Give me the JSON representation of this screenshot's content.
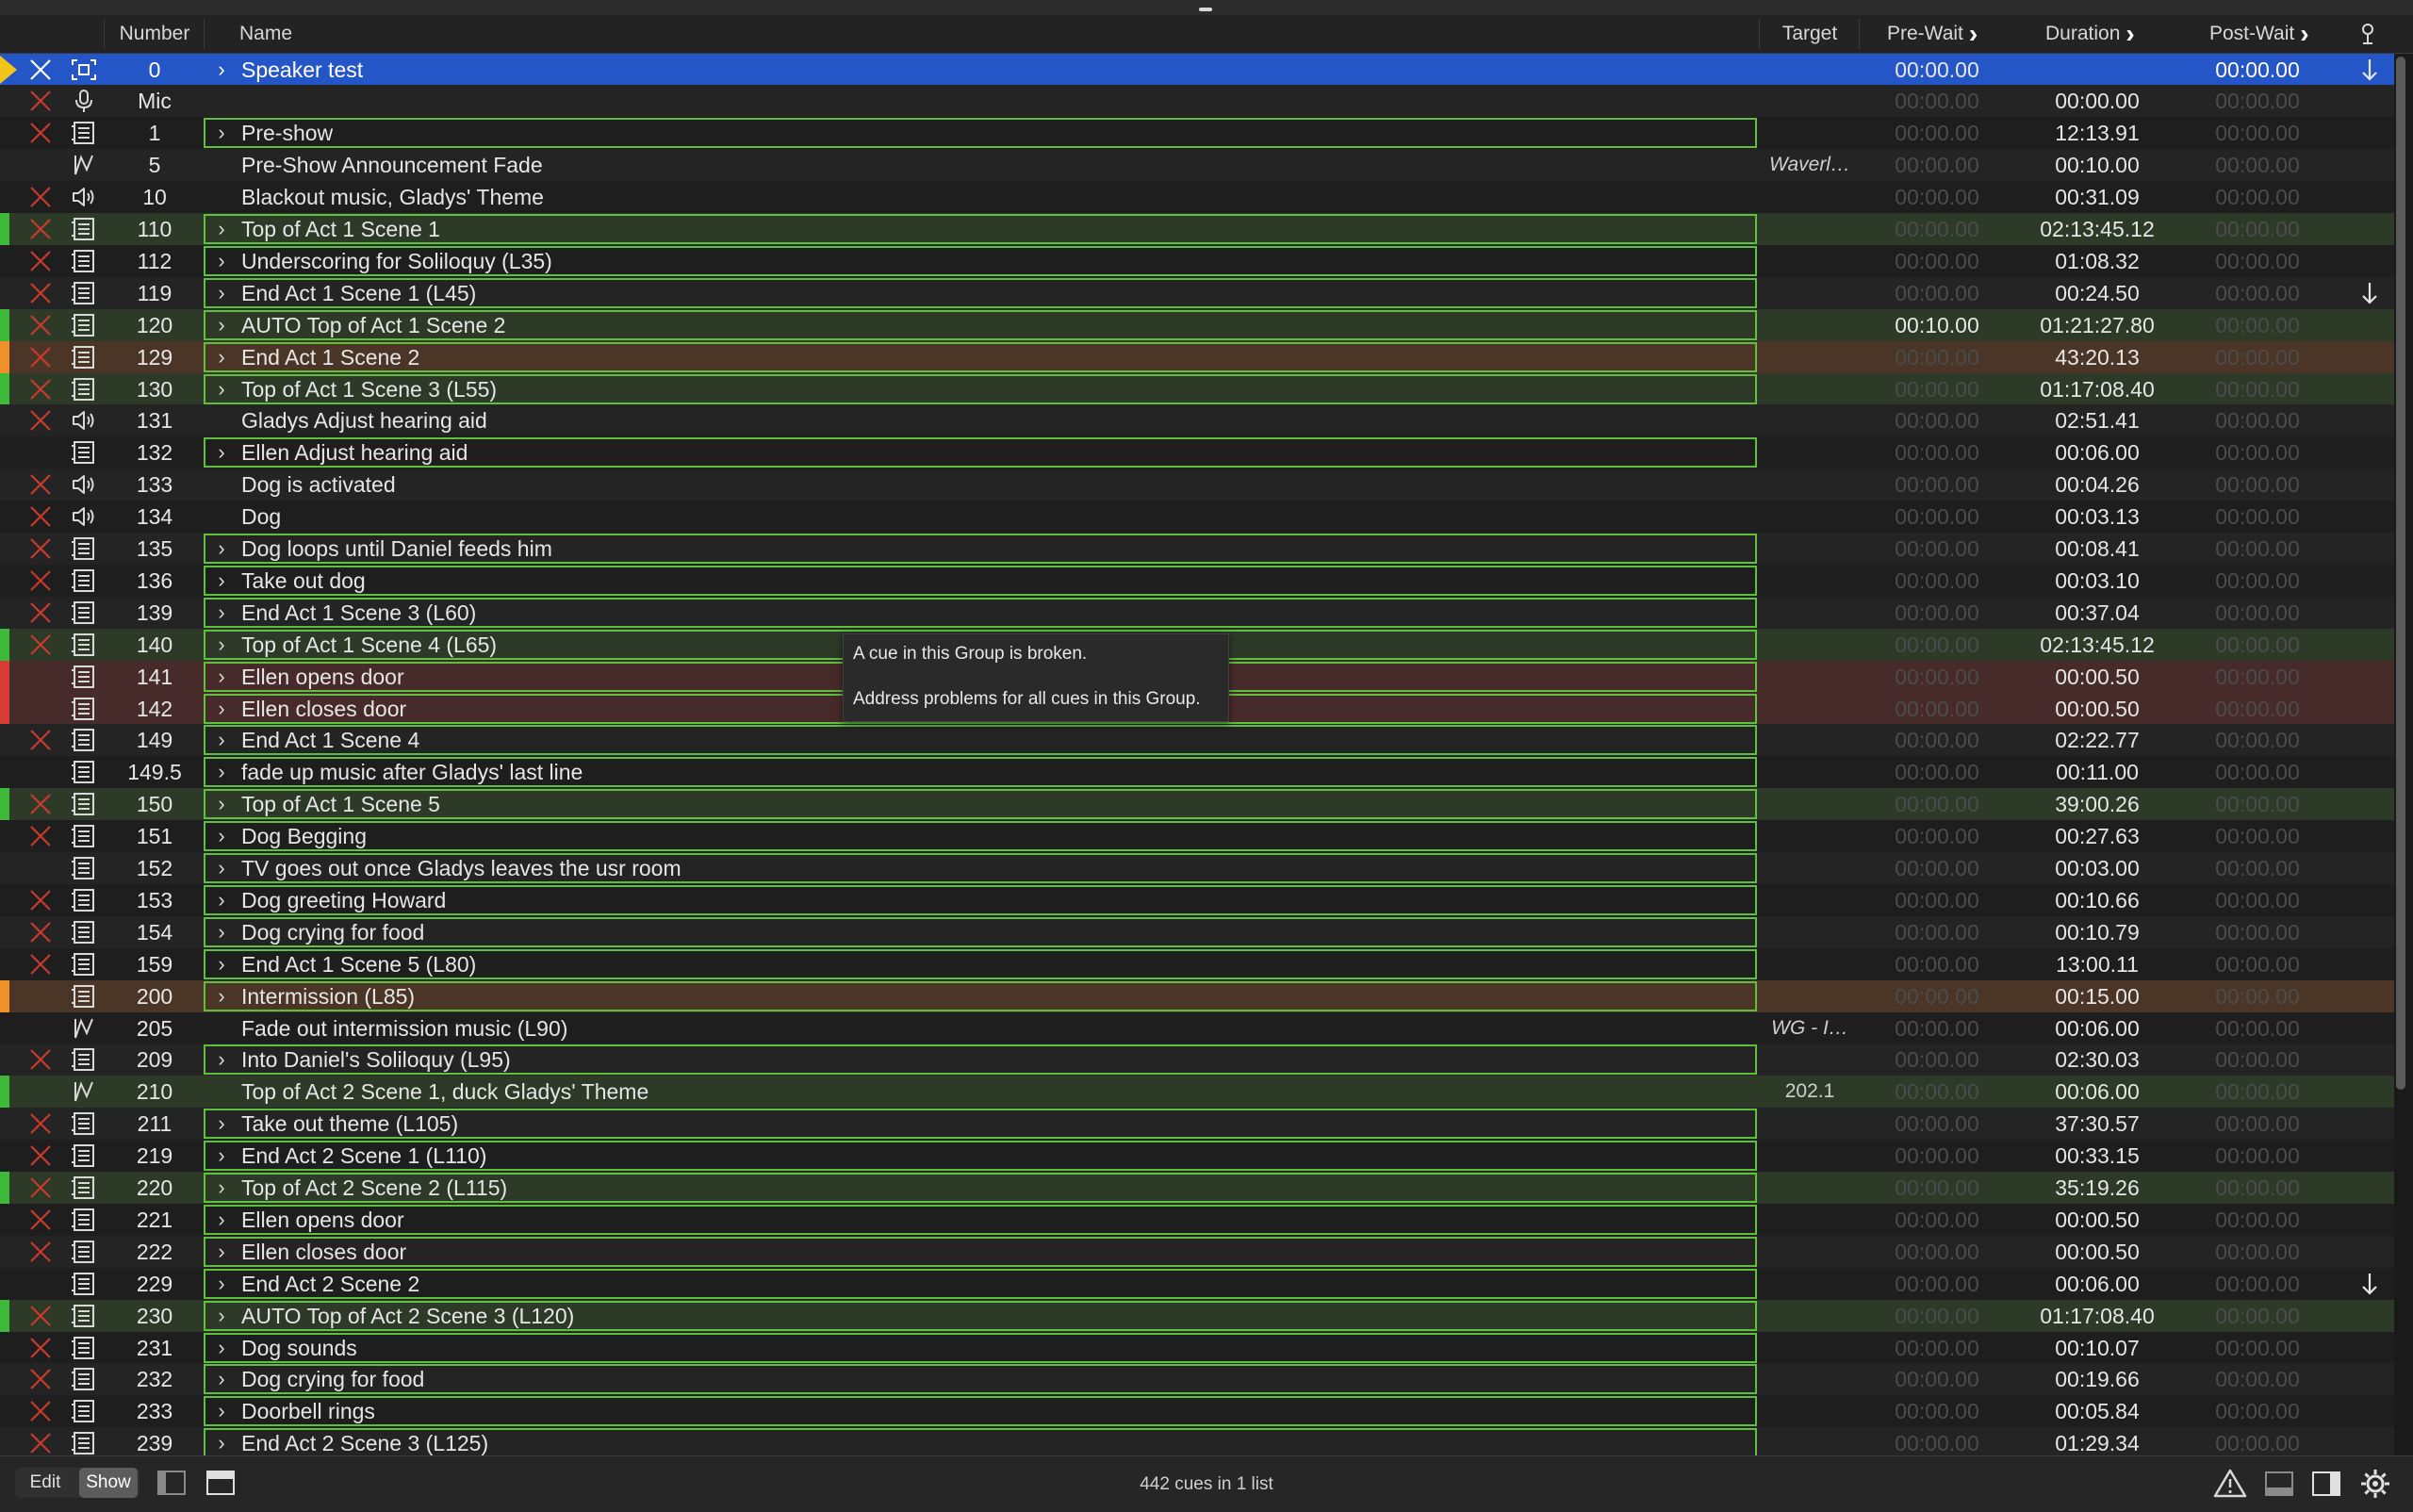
{
  "columns": {
    "number": "Number",
    "name": "Name",
    "target": "Target",
    "prewait": "Pre-Wait",
    "duration": "Duration",
    "postwait": "Post-Wait"
  },
  "cues": [
    {
      "number": "0",
      "name": "Speaker test",
      "type": "focus",
      "group": true,
      "broken": true,
      "stripe": "yellow",
      "prewait": "00:00.00",
      "duration": "",
      "postwait": "00:00.00",
      "target": "",
      "selected": true,
      "arrow": true,
      "pre_active": true
    },
    {
      "number": "Mic",
      "name": "",
      "type": "mic",
      "group": false,
      "broken": true,
      "stripe": "",
      "prewait": "00:00.00",
      "duration": "00:00.00",
      "postwait": "00:00.00",
      "target": ""
    },
    {
      "number": "1",
      "name": "Pre-show",
      "type": "group",
      "group": true,
      "broken": true,
      "stripe": "",
      "prewait": "00:00.00",
      "duration": "12:13.91",
      "postwait": "00:00.00",
      "target": ""
    },
    {
      "number": "5",
      "name": "Pre-Show Announcement Fade",
      "type": "fade",
      "group": false,
      "broken": false,
      "stripe": "",
      "prewait": "00:00.00",
      "duration": "00:10.00",
      "postwait": "00:00.00",
      "target": "Waverl…"
    },
    {
      "number": "10",
      "name": "Blackout music, Gladys' Theme",
      "type": "audio",
      "group": false,
      "broken": true,
      "stripe": "",
      "prewait": "00:00.00",
      "duration": "00:31.09",
      "postwait": "00:00.00",
      "target": ""
    },
    {
      "number": "110",
      "name": "Top of Act 1 Scene 1",
      "type": "group",
      "group": true,
      "broken": true,
      "stripe": "green",
      "prewait": "00:00.00",
      "duration": "02:13:45.12",
      "postwait": "00:00.00",
      "target": ""
    },
    {
      "number": "112",
      "name": "Underscoring for Soliloquy (L35)",
      "type": "group",
      "group": true,
      "broken": true,
      "stripe": "",
      "prewait": "00:00.00",
      "duration": "01:08.32",
      "postwait": "00:00.00",
      "target": ""
    },
    {
      "number": "119",
      "name": "End Act 1 Scene 1 (L45)",
      "type": "group",
      "group": true,
      "broken": true,
      "stripe": "",
      "prewait": "00:00.00",
      "duration": "00:24.50",
      "postwait": "00:00.00",
      "target": "",
      "arrow": true
    },
    {
      "number": "120",
      "name": "AUTO Top of Act 1 Scene 2",
      "type": "group",
      "group": true,
      "broken": true,
      "stripe": "green",
      "prewait": "00:10.00",
      "duration": "01:21:27.80",
      "postwait": "00:00.00",
      "target": "",
      "pre_active": true
    },
    {
      "number": "129",
      "name": "End Act 1 Scene 2",
      "type": "group",
      "group": true,
      "broken": true,
      "stripe": "orange",
      "prewait": "00:00.00",
      "duration": "43:20.13",
      "postwait": "00:00.00",
      "target": ""
    },
    {
      "number": "130",
      "name": "Top of Act 1 Scene 3 (L55)",
      "type": "group",
      "group": true,
      "broken": true,
      "stripe": "green",
      "prewait": "00:00.00",
      "duration": "01:17:08.40",
      "postwait": "00:00.00",
      "target": ""
    },
    {
      "number": "131",
      "name": "Gladys Adjust hearing aid",
      "type": "audio",
      "group": false,
      "broken": true,
      "stripe": "",
      "prewait": "00:00.00",
      "duration": "02:51.41",
      "postwait": "00:00.00",
      "target": ""
    },
    {
      "number": "132",
      "name": "Ellen Adjust hearing aid",
      "type": "group",
      "group": true,
      "broken": false,
      "stripe": "",
      "prewait": "00:00.00",
      "duration": "00:06.00",
      "postwait": "00:00.00",
      "target": ""
    },
    {
      "number": "133",
      "name": "Dog is activated",
      "type": "audio",
      "group": false,
      "broken": true,
      "stripe": "",
      "prewait": "00:00.00",
      "duration": "00:04.26",
      "postwait": "00:00.00",
      "target": ""
    },
    {
      "number": "134",
      "name": "Dog",
      "type": "audio",
      "group": false,
      "broken": true,
      "stripe": "",
      "prewait": "00:00.00",
      "duration": "00:03.13",
      "postwait": "00:00.00",
      "target": ""
    },
    {
      "number": "135",
      "name": "Dog loops until Daniel feeds him",
      "type": "group",
      "group": true,
      "broken": true,
      "stripe": "",
      "prewait": "00:00.00",
      "duration": "00:08.41",
      "postwait": "00:00.00",
      "target": ""
    },
    {
      "number": "136",
      "name": "Take out dog",
      "type": "group",
      "group": true,
      "broken": true,
      "stripe": "",
      "prewait": "00:00.00",
      "duration": "00:03.10",
      "postwait": "00:00.00",
      "target": ""
    },
    {
      "number": "139",
      "name": "End Act 1 Scene 3 (L60)",
      "type": "group",
      "group": true,
      "broken": true,
      "stripe": "",
      "prewait": "00:00.00",
      "duration": "00:37.04",
      "postwait": "00:00.00",
      "target": ""
    },
    {
      "number": "140",
      "name": "Top of Act 1 Scene 4 (L65)",
      "type": "group",
      "group": true,
      "broken": true,
      "stripe": "green",
      "prewait": "00:00.00",
      "duration": "02:13:45.12",
      "postwait": "00:00.00",
      "target": ""
    },
    {
      "number": "141",
      "name": "Ellen opens door",
      "type": "group",
      "group": true,
      "broken": false,
      "stripe": "red",
      "prewait": "00:00.00",
      "duration": "00:00.50",
      "postwait": "00:00.00",
      "target": ""
    },
    {
      "number": "142",
      "name": "Ellen closes door",
      "type": "group",
      "group": true,
      "broken": false,
      "stripe": "red",
      "prewait": "00:00.00",
      "duration": "00:00.50",
      "postwait": "00:00.00",
      "target": ""
    },
    {
      "number": "149",
      "name": "End Act 1 Scene 4",
      "type": "group",
      "group": true,
      "broken": true,
      "stripe": "",
      "prewait": "00:00.00",
      "duration": "02:22.77",
      "postwait": "00:00.00",
      "target": ""
    },
    {
      "number": "149.5",
      "name": "fade up music after Gladys' last line",
      "type": "group",
      "group": true,
      "broken": false,
      "stripe": "",
      "prewait": "00:00.00",
      "duration": "00:11.00",
      "postwait": "00:00.00",
      "target": ""
    },
    {
      "number": "150",
      "name": "Top of Act 1 Scene 5",
      "type": "group",
      "group": true,
      "broken": true,
      "stripe": "green",
      "prewait": "00:00.00",
      "duration": "39:00.26",
      "postwait": "00:00.00",
      "target": ""
    },
    {
      "number": "151",
      "name": "Dog Begging",
      "type": "group",
      "group": true,
      "broken": true,
      "stripe": "",
      "prewait": "00:00.00",
      "duration": "00:27.63",
      "postwait": "00:00.00",
      "target": ""
    },
    {
      "number": "152",
      "name": "TV goes out once Gladys leaves the usr room",
      "type": "group",
      "group": true,
      "broken": false,
      "stripe": "",
      "prewait": "00:00.00",
      "duration": "00:03.00",
      "postwait": "00:00.00",
      "target": ""
    },
    {
      "number": "153",
      "name": "Dog greeting Howard",
      "type": "group",
      "group": true,
      "broken": true,
      "stripe": "",
      "prewait": "00:00.00",
      "duration": "00:10.66",
      "postwait": "00:00.00",
      "target": ""
    },
    {
      "number": "154",
      "name": "Dog crying for food",
      "type": "group",
      "group": true,
      "broken": true,
      "stripe": "",
      "prewait": "00:00.00",
      "duration": "00:10.79",
      "postwait": "00:00.00",
      "target": ""
    },
    {
      "number": "159",
      "name": "End Act 1 Scene 5 (L80)",
      "type": "group",
      "group": true,
      "broken": true,
      "stripe": "",
      "prewait": "00:00.00",
      "duration": "13:00.11",
      "postwait": "00:00.00",
      "target": ""
    },
    {
      "number": "200",
      "name": "Intermission (L85)",
      "type": "group",
      "group": true,
      "broken": false,
      "stripe": "orange",
      "prewait": "00:00.00",
      "duration": "00:15.00",
      "postwait": "00:00.00",
      "target": ""
    },
    {
      "number": "205",
      "name": "Fade out intermission music (L90)",
      "type": "fade",
      "group": false,
      "broken": false,
      "stripe": "",
      "prewait": "00:00.00",
      "duration": "00:06.00",
      "postwait": "00:00.00",
      "target": "WG - I…"
    },
    {
      "number": "209",
      "name": "Into Daniel's Soliloquy (L95)",
      "type": "group",
      "group": true,
      "broken": true,
      "stripe": "",
      "prewait": "00:00.00",
      "duration": "02:30.03",
      "postwait": "00:00.00",
      "target": ""
    },
    {
      "number": "210",
      "name": "Top of Act 2 Scene 1, duck Gladys' Theme",
      "type": "fade",
      "group": false,
      "broken": false,
      "stripe": "green",
      "prewait": "00:00.00",
      "duration": "00:06.00",
      "postwait": "00:00.00",
      "target": "202.1",
      "target_plain": true
    },
    {
      "number": "211",
      "name": "Take out theme (L105)",
      "type": "group",
      "group": true,
      "broken": true,
      "stripe": "",
      "prewait": "00:00.00",
      "duration": "37:30.57",
      "postwait": "00:00.00",
      "target": ""
    },
    {
      "number": "219",
      "name": "End Act 2 Scene 1 (L110)",
      "type": "group",
      "group": true,
      "broken": true,
      "stripe": "",
      "prewait": "00:00.00",
      "duration": "00:33.15",
      "postwait": "00:00.00",
      "target": ""
    },
    {
      "number": "220",
      "name": "Top of Act 2 Scene 2 (L115)",
      "type": "group",
      "group": true,
      "broken": true,
      "stripe": "green",
      "prewait": "00:00.00",
      "duration": "35:19.26",
      "postwait": "00:00.00",
      "target": ""
    },
    {
      "number": "221",
      "name": "Ellen opens door",
      "type": "group",
      "group": true,
      "broken": true,
      "stripe": "",
      "prewait": "00:00.00",
      "duration": "00:00.50",
      "postwait": "00:00.00",
      "target": ""
    },
    {
      "number": "222",
      "name": "Ellen closes door",
      "type": "group",
      "group": true,
      "broken": true,
      "stripe": "",
      "prewait": "00:00.00",
      "duration": "00:00.50",
      "postwait": "00:00.00",
      "target": ""
    },
    {
      "number": "229",
      "name": "End Act 2 Scene 2",
      "type": "group",
      "group": true,
      "broken": false,
      "stripe": "",
      "prewait": "00:00.00",
      "duration": "00:06.00",
      "postwait": "00:00.00",
      "target": "",
      "arrow": true
    },
    {
      "number": "230",
      "name": "AUTO Top of Act 2 Scene 3 (L120)",
      "type": "group",
      "group": true,
      "broken": true,
      "stripe": "green",
      "prewait": "00:00.00",
      "duration": "01:17:08.40",
      "postwait": "00:00.00",
      "target": ""
    },
    {
      "number": "231",
      "name": "Dog sounds",
      "type": "group",
      "group": true,
      "broken": true,
      "stripe": "",
      "prewait": "00:00.00",
      "duration": "00:10.07",
      "postwait": "00:00.00",
      "target": ""
    },
    {
      "number": "232",
      "name": "Dog crying for food",
      "type": "group",
      "group": true,
      "broken": true,
      "stripe": "",
      "prewait": "00:00.00",
      "duration": "00:19.66",
      "postwait": "00:00.00",
      "target": ""
    },
    {
      "number": "233",
      "name": "Doorbell rings",
      "type": "group",
      "group": true,
      "broken": true,
      "stripe": "",
      "prewait": "00:00.00",
      "duration": "00:05.84",
      "postwait": "00:00.00",
      "target": ""
    },
    {
      "number": "239",
      "name": "End Act 2 Scene 3 (L125)",
      "type": "group",
      "group": true,
      "broken": true,
      "stripe": "",
      "prewait": "00:00.00",
      "duration": "01:29.34",
      "postwait": "00:00.00",
      "target": ""
    }
  ],
  "tooltip": {
    "line1": "A cue in this Group is broken.",
    "line2": "Address problems for all cues in this Group."
  },
  "footer": {
    "edit_label": "Edit",
    "show_label": "Show",
    "count_text": "442 cues in 1 list"
  },
  "colors": {
    "selection": "#2456c8",
    "group_border": "#5fbf3e",
    "broken_x": "#c83a2e",
    "stripe_green": "#3fb93a",
    "stripe_orange": "#f0902a",
    "stripe_red": "#d83a34",
    "stripe_yellow": "#f0c419",
    "row_green": "#2c3a27",
    "row_orange": "#4a3526",
    "row_red": "#472b2a"
  }
}
